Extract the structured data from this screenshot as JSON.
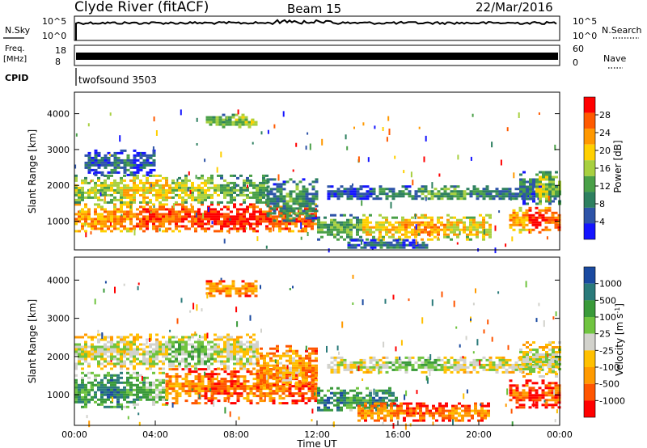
{
  "header": {
    "title": "Clyde River (fitACF)",
    "beam": "Beam 15",
    "date": "22/Mar/2016"
  },
  "colors": {
    "power": [
      "#1414ff",
      "#2e54a8",
      "#2e8060",
      "#4aa048",
      "#a8d040",
      "#ffd000",
      "#ff9800",
      "#ff5a00",
      "#ff0000"
    ],
    "velocity": [
      "#ff0000",
      "#ff5500",
      "#ff9a00",
      "#ffc000",
      "#d2d2cc",
      "#70c440",
      "#3a9a3a",
      "#2a7a7a",
      "#1a4aa0"
    ]
  },
  "chart_data": [
    {
      "type": "line",
      "name": "housekeeping",
      "left_labels": {
        "nsky": "N.Sky",
        "freq_top": "Freq.",
        "freq_unit": "[MHz]",
        "cpid": "CPID"
      },
      "right_labels": {
        "nsearch": "N.Search",
        "nave": "Nave"
      },
      "nsky_ticks": [
        "10^5",
        "10^0"
      ],
      "nsearch_ticks": [
        "10^5",
        "10^0"
      ],
      "freq_ticks": [
        "18",
        "8"
      ],
      "nave_ticks": [
        "60",
        "0"
      ],
      "cpid_label": "twofsound 3503",
      "nsky_level_fraction": 0.72,
      "freq_level_fraction": 0.45
    },
    {
      "type": "heatmap",
      "name": "power",
      "ylabel": "Slant Range [km]",
      "yticks": [
        "4000",
        "3000",
        "2000",
        "1000"
      ],
      "ylim": [
        200,
        4600
      ],
      "colorbar_label": "Power [dB]",
      "colorbar_ticks": [
        "28",
        "24",
        "20",
        "16",
        "12",
        "8",
        "4"
      ],
      "bands": [
        {
          "t0": 0.0,
          "t1": 12.0,
          "r0": 700,
          "r1": 1500,
          "levels": [
            6,
            7,
            8,
            7
          ]
        },
        {
          "t0": 0.0,
          "t1": 9.5,
          "r0": 1500,
          "r1": 2300,
          "levels": [
            4,
            5,
            4,
            3
          ]
        },
        {
          "t0": 0.5,
          "t1": 4.0,
          "r0": 2300,
          "r1": 3000,
          "levels": [
            1,
            2,
            1
          ]
        },
        {
          "t0": 9.5,
          "t1": 12.0,
          "r0": 1000,
          "r1": 2200,
          "levels": [
            2,
            3,
            2
          ]
        },
        {
          "t0": 12.5,
          "t1": 24.0,
          "r0": 1600,
          "r1": 2000,
          "levels": [
            1,
            2,
            3,
            2,
            1
          ]
        },
        {
          "t0": 12.0,
          "t1": 20.5,
          "r0": 500,
          "r1": 1200,
          "levels": [
            3,
            5,
            6,
            5
          ]
        },
        {
          "t0": 13.5,
          "t1": 17.5,
          "r0": 250,
          "r1": 500,
          "levels": [
            1,
            2,
            1
          ]
        },
        {
          "t0": 21.5,
          "t1": 24.0,
          "r0": 700,
          "r1": 1400,
          "levels": [
            6,
            8,
            7
          ]
        },
        {
          "t0": 22.0,
          "t1": 24.0,
          "r0": 1500,
          "r1": 2400,
          "levels": [
            2,
            4,
            3
          ]
        },
        {
          "t0": 6.5,
          "t1": 9.0,
          "r0": 3600,
          "r1": 4000,
          "levels": [
            3,
            4
          ]
        }
      ]
    },
    {
      "type": "heatmap",
      "name": "velocity",
      "ylabel": "Slant Range [km]",
      "yticks": [
        "4000",
        "3000",
        "2000",
        "1000"
      ],
      "ylim": [
        200,
        4600
      ],
      "colorbar_label": "Velocity [m s^-1]",
      "colorbar_ticks": [
        "1000",
        "500",
        "100",
        "25",
        "-25",
        "-100",
        "-500",
        "-1000"
      ],
      "xlabel": "Time UT",
      "xticks": [
        "00:00",
        "04:00",
        "08:00",
        "12:00",
        "16:00",
        "20:00",
        "00:00"
      ],
      "xlim": [
        0,
        24
      ],
      "bands": [
        {
          "t0": 0.0,
          "t1": 4.5,
          "r0": 700,
          "r1": 1600,
          "levels": [
            6,
            7,
            6,
            5
          ]
        },
        {
          "t0": 4.5,
          "t1": 12.0,
          "r0": 800,
          "r1": 1700,
          "levels": [
            2,
            1,
            2,
            1
          ]
        },
        {
          "t0": 0.0,
          "t1": 9.0,
          "r0": 1700,
          "r1": 2600,
          "levels": [
            4,
            4,
            5,
            4
          ]
        },
        {
          "t0": 9.0,
          "t1": 12.0,
          "r0": 1200,
          "r1": 2300,
          "levels": [
            2,
            3,
            2
          ]
        },
        {
          "t0": 12.5,
          "t1": 24.0,
          "r0": 1600,
          "r1": 2000,
          "levels": [
            4,
            5,
            4,
            4
          ]
        },
        {
          "t0": 12.0,
          "t1": 16.0,
          "r0": 600,
          "r1": 1200,
          "levels": [
            7,
            6,
            7
          ]
        },
        {
          "t0": 14.0,
          "t1": 20.5,
          "r0": 300,
          "r1": 800,
          "levels": [
            2,
            1,
            2
          ]
        },
        {
          "t0": 21.5,
          "t1": 24.0,
          "r0": 700,
          "r1": 1400,
          "levels": [
            1,
            0,
            1
          ]
        },
        {
          "t0": 22.0,
          "t1": 24.0,
          "r0": 1500,
          "r1": 2400,
          "levels": [
            4,
            4
          ]
        },
        {
          "t0": 6.5,
          "t1": 9.0,
          "r0": 3600,
          "r1": 4000,
          "levels": [
            2,
            2
          ]
        }
      ]
    }
  ]
}
